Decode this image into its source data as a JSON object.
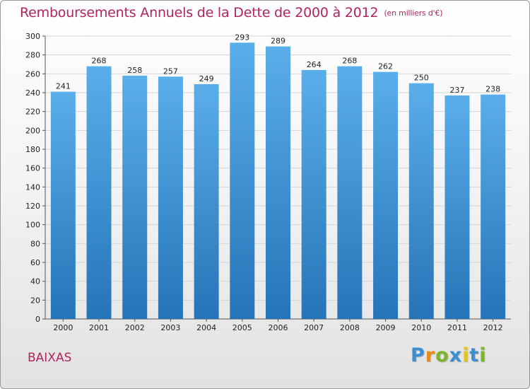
{
  "chart_data": {
    "type": "bar",
    "title": "Remboursements Annuels de la Dette de 2000 à 2012",
    "subtitle": "(en milliers d'€)",
    "categories": [
      "2000",
      "2001",
      "2002",
      "2003",
      "2004",
      "2005",
      "2006",
      "2007",
      "2008",
      "2009",
      "2010",
      "2011",
      "2012"
    ],
    "values": [
      241,
      268,
      258,
      257,
      249,
      293,
      289,
      264,
      268,
      262,
      250,
      237,
      238
    ],
    "ylim": [
      0,
      300
    ],
    "yticks": [
      0,
      20,
      40,
      60,
      80,
      100,
      120,
      140,
      160,
      180,
      200,
      220,
      240,
      260,
      280,
      300
    ],
    "grid": true,
    "bar_color_top": "#5aaeea",
    "bar_color_bottom": "#2574b8",
    "title_color": "#b0245e"
  },
  "footer": {
    "city": "BAIXAS",
    "logo_text": "Proxiti",
    "logo_colors": [
      "#3a8fd0",
      "#e88a1a",
      "#7ab52a",
      "#3a8fd0",
      "#e8c51a",
      "#3a8fd0",
      "#7ab52a"
    ]
  }
}
